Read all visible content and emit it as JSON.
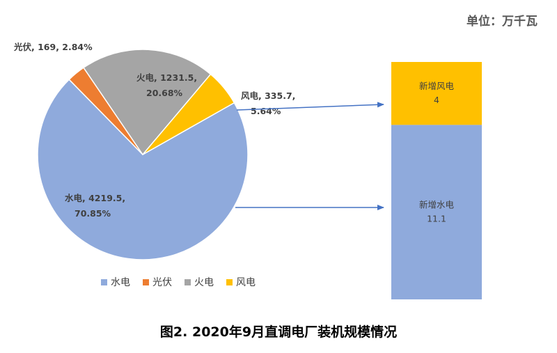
{
  "unit_label": "单位：万千瓦",
  "caption": "图2.   2020年9月直调电厂装机规模情况",
  "chart_data": [
    {
      "type": "pie",
      "slices": [
        {
          "name": "水电",
          "value": 4219.5,
          "percent": "70.85%",
          "color": "#8FAADC",
          "label": "水电, 4219.5,",
          "label2": "70.85%"
        },
        {
          "name": "光伏",
          "value": 169,
          "percent": "2.84%",
          "color": "#ED7D31",
          "label": "光伏, 169, 2.84%",
          "label2": ""
        },
        {
          "name": "火电",
          "value": 1231.5,
          "percent": "20.68%",
          "color": "#A5A5A5",
          "label": "火电, 1231.5,",
          "label2": "20.68%"
        },
        {
          "name": "风电",
          "value": 335.7,
          "percent": "5.64%",
          "color": "#FFC000",
          "label": "风电, 335.7,",
          "label2": "5.64%"
        }
      ],
      "legend": [
        "水电",
        "光伏",
        "火电",
        "风电"
      ],
      "legend_position": "bottom"
    },
    {
      "type": "bar",
      "stacked": true,
      "series": [
        {
          "name": "新增水电",
          "value": 11.1,
          "color": "#8FAADC"
        },
        {
          "name": "新增风电",
          "value": 4,
          "color": "#FFC000"
        }
      ]
    }
  ]
}
